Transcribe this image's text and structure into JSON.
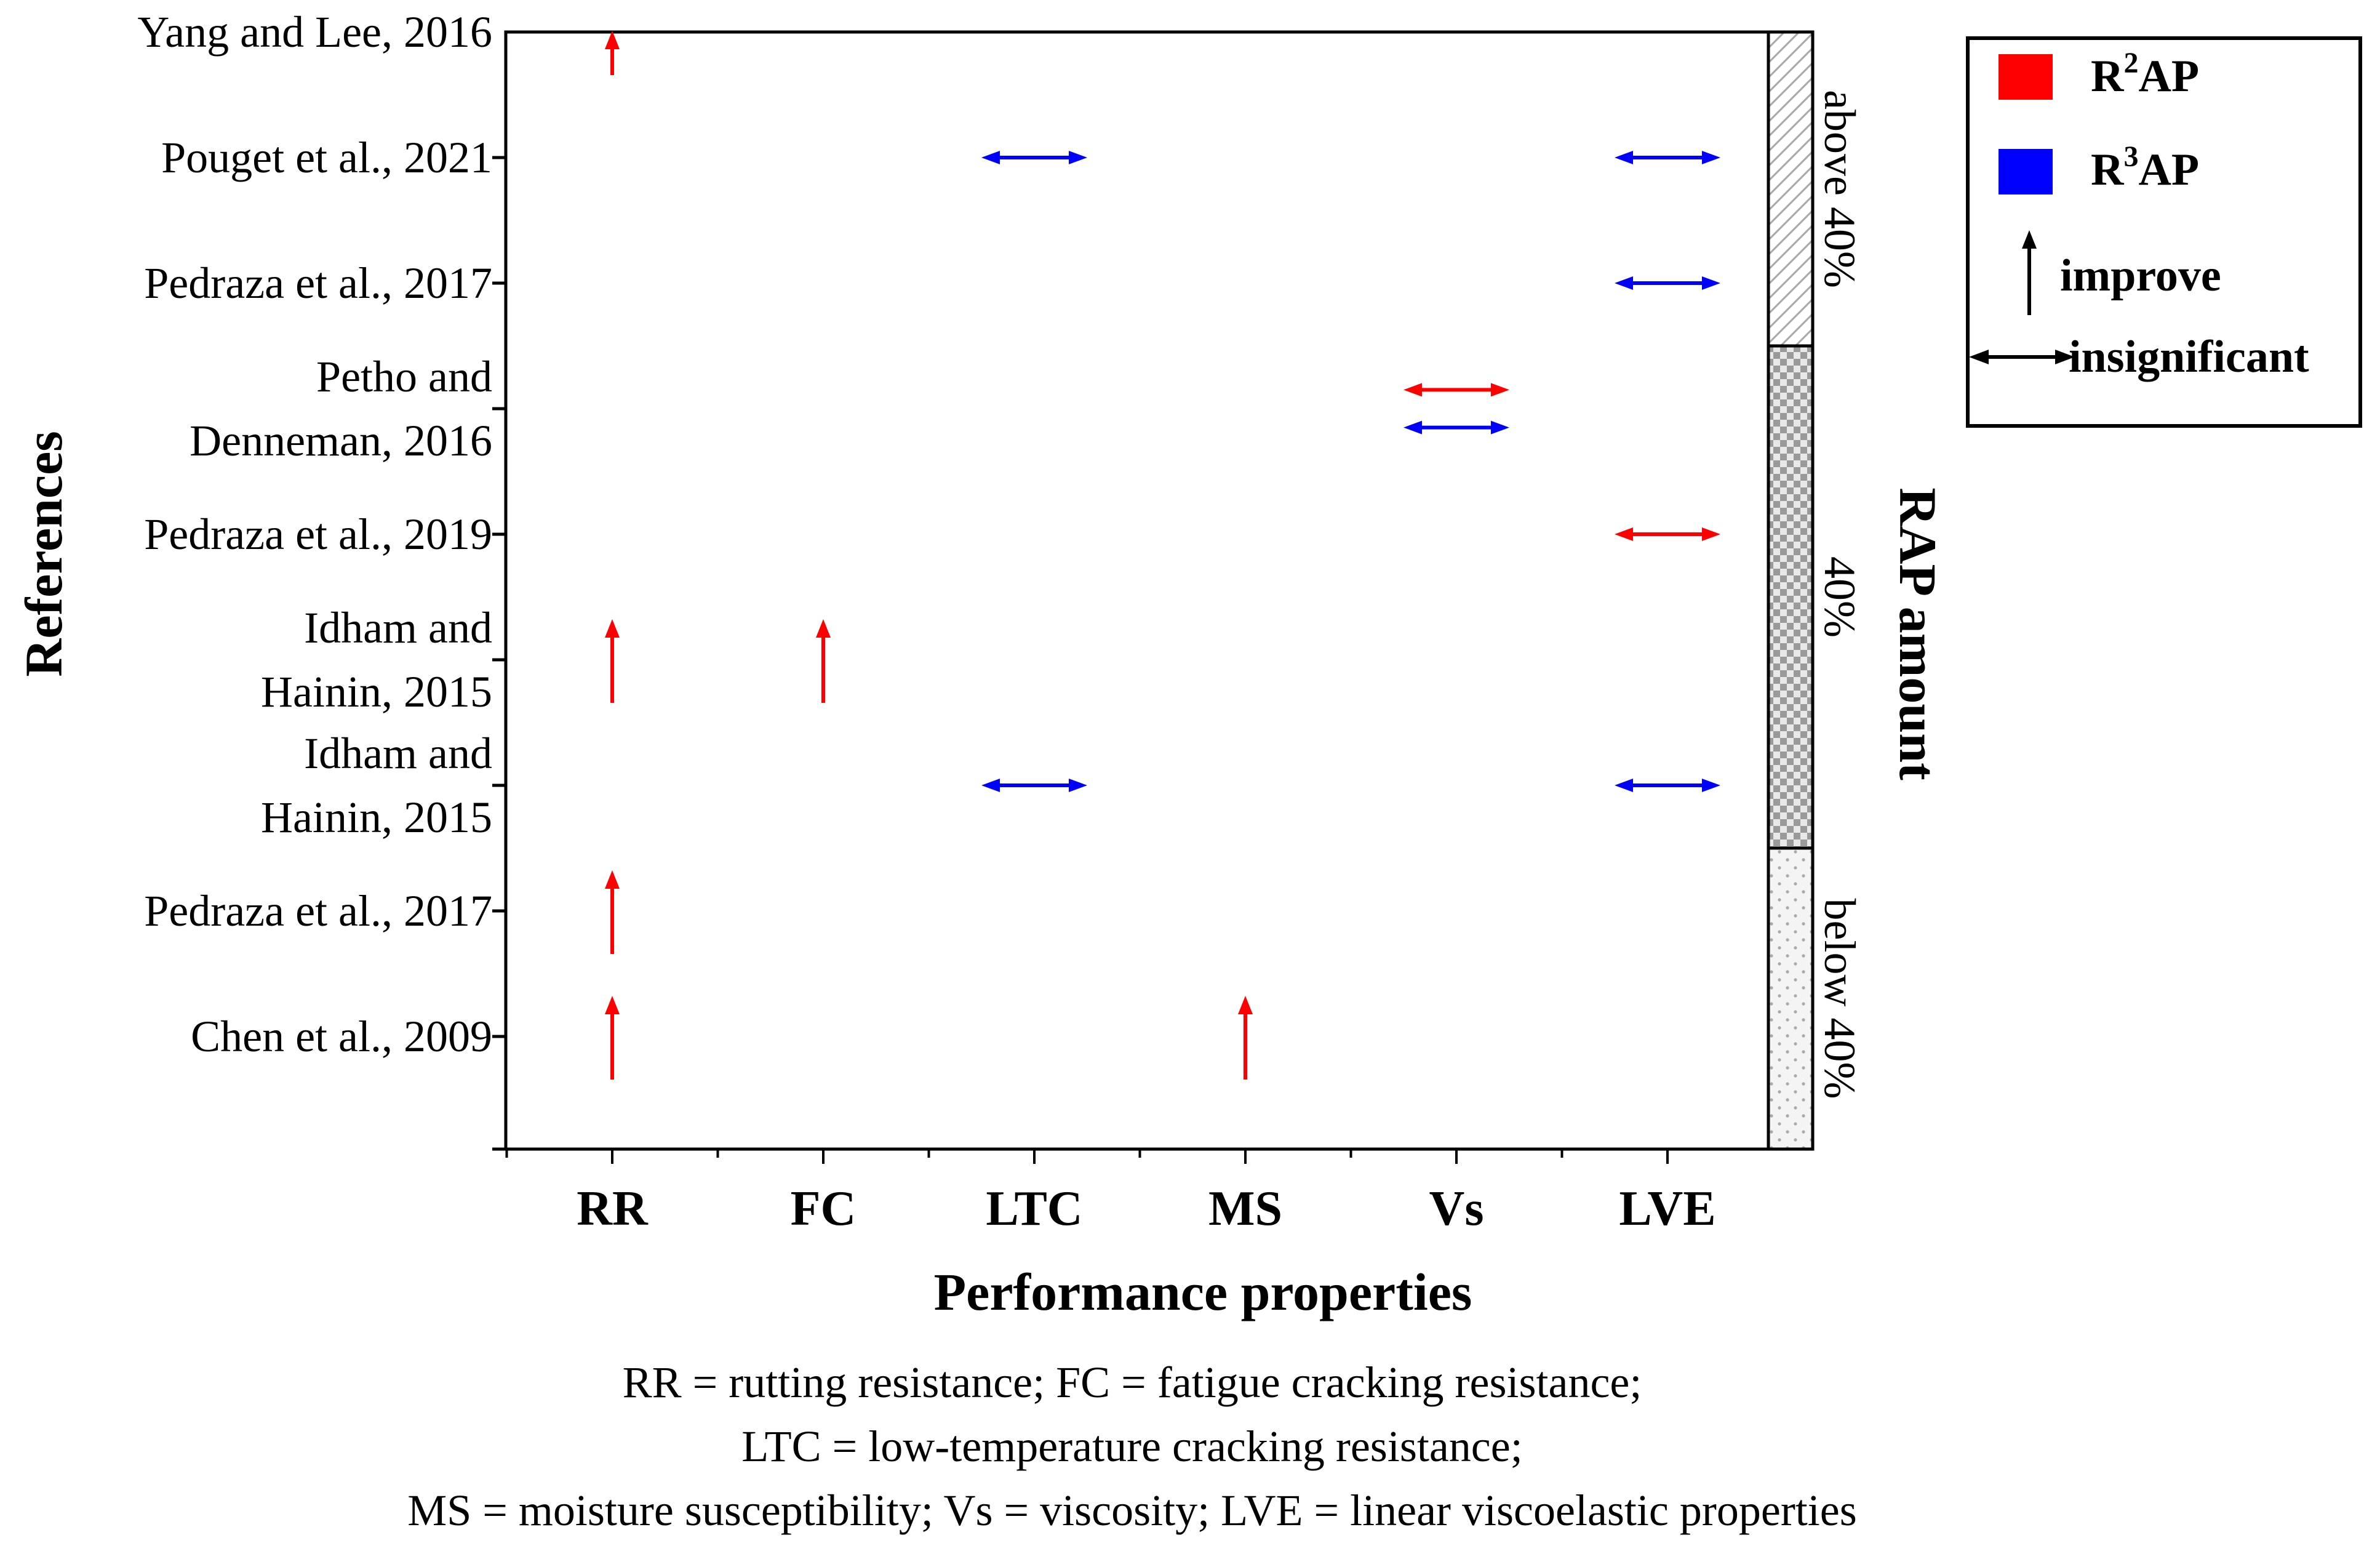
{
  "chart_data": {
    "type": "scatter",
    "xlabel": "Performance properties",
    "ylabel": "References",
    "right_axis_label": "RAP amount",
    "categories": [
      "RR",
      "FC",
      "LTC",
      "MS",
      "Vs",
      "LVE"
    ],
    "rows": [
      {
        "lines": [
          "Yang and Lee, 2016"
        ]
      },
      {
        "lines": [
          "Pouget et al., 2021"
        ]
      },
      {
        "lines": [
          "Pedraza et al., 2017"
        ]
      },
      {
        "lines": [
          "Petho and",
          "Denneman, 2016"
        ]
      },
      {
        "lines": [
          "Pedraza et al., 2019"
        ]
      },
      {
        "lines": [
          "Idham and",
          "Hainin, 2015"
        ]
      },
      {
        "lines": [
          "Idham and",
          "Hainin, 2015"
        ]
      },
      {
        "lines": [
          "Pedraza et al., 2017"
        ]
      },
      {
        "lines": [
          "Chen et al., 2009"
        ]
      }
    ],
    "markers": [
      {
        "row": 0,
        "category": "RR",
        "type": "R2AP",
        "effect": "improve"
      },
      {
        "row": 1,
        "category": "LTC",
        "type": "R3AP",
        "effect": "insignificant"
      },
      {
        "row": 1,
        "category": "LVE",
        "type": "R3AP",
        "effect": "insignificant"
      },
      {
        "row": 2,
        "category": "LVE",
        "type": "R3AP",
        "effect": "insignificant"
      },
      {
        "row": 3,
        "category": "Vs",
        "type": "R2AP",
        "effect": "insignificant",
        "offset": -0.15
      },
      {
        "row": 3,
        "category": "Vs",
        "type": "R3AP",
        "effect": "insignificant",
        "offset": 0.15
      },
      {
        "row": 4,
        "category": "LVE",
        "type": "R2AP",
        "effect": "insignificant"
      },
      {
        "row": 5,
        "category": "RR",
        "type": "R2AP",
        "effect": "improve"
      },
      {
        "row": 5,
        "category": "FC",
        "type": "R2AP",
        "effect": "improve"
      },
      {
        "row": 6,
        "category": "LTC",
        "type": "R3AP",
        "effect": "insignificant"
      },
      {
        "row": 6,
        "category": "LVE",
        "type": "R3AP",
        "effect": "insignificant"
      },
      {
        "row": 7,
        "category": "RR",
        "type": "R2AP",
        "effect": "improve"
      },
      {
        "row": 8,
        "category": "RR",
        "type": "R2AP",
        "effect": "improve"
      },
      {
        "row": 8,
        "category": "MS",
        "type": "R2AP",
        "effect": "improve"
      }
    ],
    "rap_bands": [
      {
        "label": "above 40%",
        "rows": [
          0,
          2
        ],
        "pattern": "hatch"
      },
      {
        "label": "40%",
        "rows": [
          3,
          6
        ],
        "pattern": "checker"
      },
      {
        "label": "below 40%",
        "rows": [
          7,
          8
        ],
        "pattern": "dots"
      }
    ],
    "legend": {
      "series": [
        {
          "key": "R2AP",
          "base": "R",
          "sup": "2",
          "rest": "AP",
          "color": "#ff0000"
        },
        {
          "key": "R3AP",
          "base": "R",
          "sup": "3",
          "rest": "AP",
          "color": "#0000ff"
        }
      ],
      "improve_label": "improve",
      "insignificant_label": "insignificant"
    }
  },
  "caption": [
    "RR = rutting resistance; FC = fatigue cracking resistance;",
    "LTC = low-temperature cracking resistance;",
    "MS = moisture susceptibility; Vs = viscosity; LVE = linear viscoelastic properties"
  ]
}
